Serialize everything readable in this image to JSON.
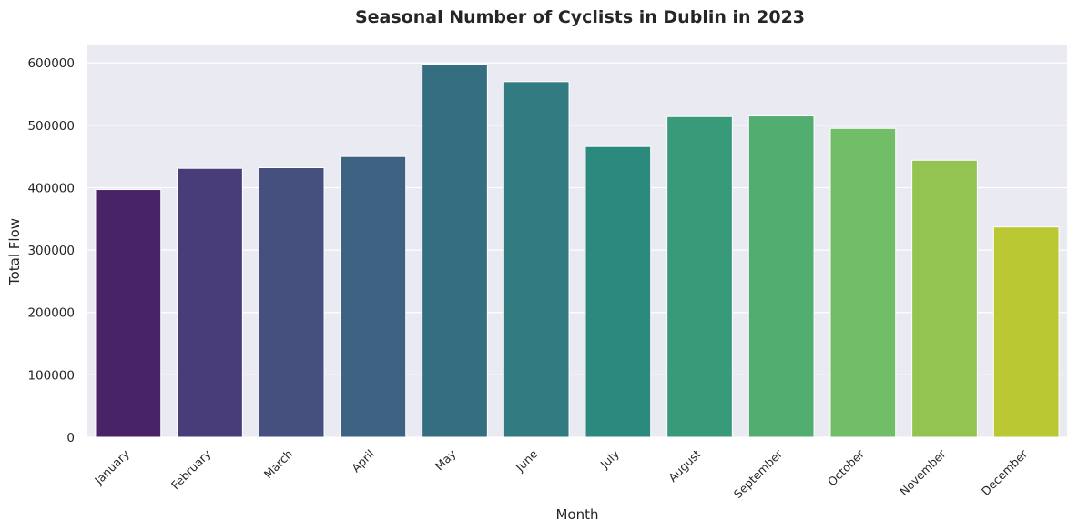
{
  "chart_data": {
    "type": "bar",
    "title": "Seasonal Number of Cyclists in Dublin in 2023",
    "xlabel": "Month",
    "ylabel": "Total Flow",
    "categories": [
      "January",
      "February",
      "March",
      "April",
      "May",
      "June",
      "July",
      "August",
      "September",
      "October",
      "November",
      "December"
    ],
    "values": [
      397000,
      431000,
      432000,
      450000,
      598000,
      570000,
      466000,
      514000,
      515000,
      495000,
      444000,
      337000
    ],
    "yticks": [
      0,
      100000,
      200000,
      300000,
      400000,
      500000,
      600000
    ],
    "ytick_labels": [
      "0",
      "100000",
      "200000",
      "300000",
      "400000",
      "500000",
      "600000"
    ],
    "ylim": [
      0,
      628000
    ],
    "grid": true,
    "legend": "none",
    "colors": [
      "#482466",
      "#483d78",
      "#45507f",
      "#3e6282",
      "#366e81",
      "#317b81",
      "#2b8a7d",
      "#389a78",
      "#52ad71",
      "#72bd68",
      "#93c350",
      "#bac833"
    ],
    "plot_background": "#eaeaf2",
    "grid_color": "#ffffff"
  }
}
